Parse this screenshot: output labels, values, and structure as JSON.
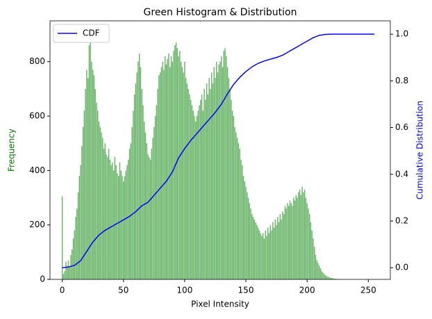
{
  "chart_data": {
    "type": "bar",
    "title": "Green Histogram & Distribution",
    "xlabel": "Pixel Intensity",
    "ylabel": "Frequency",
    "y2label": "Cumulative Distribution",
    "color": "#66b366",
    "ylabel_color": "green",
    "y2label_color": "blue",
    "x": [
      0,
      1,
      2,
      3,
      4,
      5,
      6,
      7,
      8,
      9,
      10,
      11,
      12,
      13,
      14,
      15,
      16,
      17,
      18,
      19,
      20,
      21,
      22,
      23,
      24,
      25,
      26,
      27,
      28,
      29,
      30,
      31,
      32,
      33,
      34,
      35,
      36,
      37,
      38,
      39,
      40,
      41,
      42,
      43,
      44,
      45,
      46,
      47,
      48,
      49,
      50,
      51,
      52,
      53,
      54,
      55,
      56,
      57,
      58,
      59,
      60,
      61,
      62,
      63,
      64,
      65,
      66,
      67,
      68,
      69,
      70,
      71,
      72,
      73,
      74,
      75,
      76,
      77,
      78,
      79,
      80,
      81,
      82,
      83,
      84,
      85,
      86,
      87,
      88,
      89,
      90,
      91,
      92,
      93,
      94,
      95,
      96,
      97,
      98,
      99,
      100,
      101,
      102,
      103,
      104,
      105,
      106,
      107,
      108,
      109,
      110,
      111,
      112,
      113,
      114,
      115,
      116,
      117,
      118,
      119,
      120,
      121,
      122,
      123,
      124,
      125,
      126,
      127,
      128,
      129,
      130,
      131,
      132,
      133,
      134,
      135,
      136,
      137,
      138,
      139,
      140,
      141,
      142,
      143,
      144,
      145,
      146,
      147,
      148,
      149,
      150,
      151,
      152,
      153,
      154,
      155,
      156,
      157,
      158,
      159,
      160,
      161,
      162,
      163,
      164,
      165,
      166,
      167,
      168,
      169,
      170,
      171,
      172,
      173,
      174,
      175,
      176,
      177,
      178,
      179,
      180,
      181,
      182,
      183,
      184,
      185,
      186,
      187,
      188,
      189,
      190,
      191,
      192,
      193,
      194,
      195,
      196,
      197,
      198,
      199,
      200,
      201,
      202,
      203,
      204,
      205,
      206,
      207,
      208,
      209,
      210,
      211,
      212,
      213,
      214,
      215,
      216,
      217,
      218,
      219,
      220,
      221,
      222,
      223,
      224,
      225,
      226,
      227,
      228,
      229,
      230,
      231,
      232,
      233,
      234,
      235,
      236,
      237,
      238,
      239,
      240,
      241,
      242,
      243,
      244,
      245,
      246,
      247,
      248,
      249,
      250,
      251,
      252,
      253,
      254,
      255
    ],
    "values": [
      305,
      20,
      30,
      65,
      50,
      70,
      45,
      90,
      110,
      150,
      180,
      230,
      260,
      320,
      380,
      420,
      490,
      560,
      620,
      700,
      770,
      740,
      860,
      870,
      800,
      770,
      750,
      700,
      650,
      620,
      580,
      560,
      540,
      520,
      480,
      500,
      460,
      450,
      480,
      440,
      420,
      430,
      400,
      450,
      420,
      390,
      380,
      430,
      400,
      380,
      360,
      380,
      400,
      420,
      440,
      480,
      500,
      560,
      620,
      680,
      720,
      760,
      800,
      830,
      780,
      700,
      640,
      580,
      540,
      500,
      460,
      450,
      440,
      480,
      520,
      560,
      600,
      640,
      700,
      750,
      760,
      780,
      800,
      770,
      820,
      790,
      810,
      830,
      780,
      820,
      800,
      840,
      860,
      870,
      850,
      820,
      840,
      800,
      780,
      760,
      800,
      740,
      720,
      700,
      680,
      660,
      640,
      620,
      600,
      580,
      600,
      620,
      640,
      660,
      680,
      620,
      700,
      660,
      720,
      680,
      740,
      700,
      760,
      720,
      780,
      740,
      800,
      760,
      790,
      800,
      820,
      780,
      840,
      850,
      820,
      780,
      740,
      700,
      660,
      620,
      600,
      560,
      540,
      520,
      500,
      480,
      440,
      420,
      380,
      360,
      340,
      320,
      300,
      280,
      260,
      240,
      230,
      220,
      210,
      200,
      190,
      180,
      170,
      160,
      170,
      150,
      180,
      160,
      190,
      170,
      200,
      180,
      210,
      190,
      220,
      200,
      230,
      210,
      240,
      220,
      250,
      240,
      270,
      260,
      280,
      270,
      290,
      280,
      270,
      300,
      290,
      310,
      300,
      320,
      330,
      310,
      340,
      320,
      330,
      300,
      280,
      260,
      240,
      210,
      180,
      150,
      120,
      90,
      70,
      60,
      50,
      40,
      30,
      25,
      20,
      15,
      12,
      10,
      8,
      6,
      5,
      4,
      3,
      2,
      2,
      1,
      1,
      1,
      0,
      0,
      0,
      0,
      0,
      0,
      0,
      0,
      0,
      0,
      0,
      0,
      0,
      0,
      0,
      0,
      0,
      0,
      0,
      0,
      0,
      0,
      0,
      0,
      0,
      0,
      0,
      0
    ],
    "series": [
      {
        "name": "CDF",
        "color": "#0000ff",
        "axis": "y2",
        "x": [
          0,
          5,
          10,
          15,
          20,
          25,
          30,
          35,
          40,
          45,
          50,
          55,
          60,
          65,
          70,
          75,
          80,
          85,
          90,
          95,
          100,
          105,
          110,
          115,
          120,
          125,
          130,
          135,
          140,
          145,
          150,
          155,
          160,
          165,
          170,
          175,
          180,
          185,
          190,
          195,
          200,
          205,
          210,
          215,
          220,
          225,
          230,
          235,
          240,
          245,
          250,
          255
        ],
        "values": [
          0,
          0.003,
          0.01,
          0.03,
          0.07,
          0.11,
          0.14,
          0.16,
          0.175,
          0.19,
          0.205,
          0.22,
          0.24,
          0.265,
          0.28,
          0.31,
          0.34,
          0.37,
          0.41,
          0.47,
          0.51,
          0.545,
          0.575,
          0.605,
          0.635,
          0.665,
          0.7,
          0.745,
          0.785,
          0.815,
          0.84,
          0.86,
          0.875,
          0.885,
          0.893,
          0.9,
          0.91,
          0.925,
          0.94,
          0.955,
          0.97,
          0.985,
          0.995,
          0.999,
          1,
          1,
          1,
          1,
          1,
          1,
          1,
          1
        ]
      }
    ],
    "xlim": [
      -10,
      268
    ],
    "ylim": [
      0,
      950
    ],
    "y2lim": [
      -0.05,
      1.057
    ],
    "xticks": [
      0,
      50,
      100,
      150,
      200,
      250
    ],
    "yticks": [
      0,
      200,
      400,
      600,
      800
    ],
    "y2ticks": [
      {
        "value": 0,
        "label": "0.0"
      },
      {
        "value": 0.2,
        "label": "0.2"
      },
      {
        "value": 0.4,
        "label": "0.4"
      },
      {
        "value": 0.6,
        "label": "0.6"
      },
      {
        "value": 0.8,
        "label": "0.8"
      },
      {
        "value": 1,
        "label": "1.0"
      }
    ],
    "legend": "upper left",
    "grid": false
  }
}
